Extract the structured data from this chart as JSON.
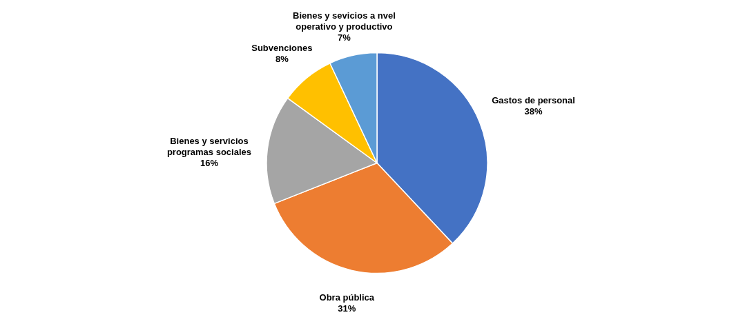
{
  "chart_data": {
    "type": "pie",
    "categories": [
      "Gastos de personal",
      "Obra pública",
      "Bienes y servicios programas sociales",
      "Subvenciones",
      "Bienes y sevicios a nvel operativo y productivo"
    ],
    "values": [
      38,
      31,
      16,
      8,
      7
    ],
    "colors": [
      "#4472c4",
      "#ed7d31",
      "#a5a5a5",
      "#ffc000",
      "#5b9bd5"
    ],
    "value_labels": [
      "38%",
      "31%",
      "16%",
      "8%",
      "7%"
    ]
  }
}
